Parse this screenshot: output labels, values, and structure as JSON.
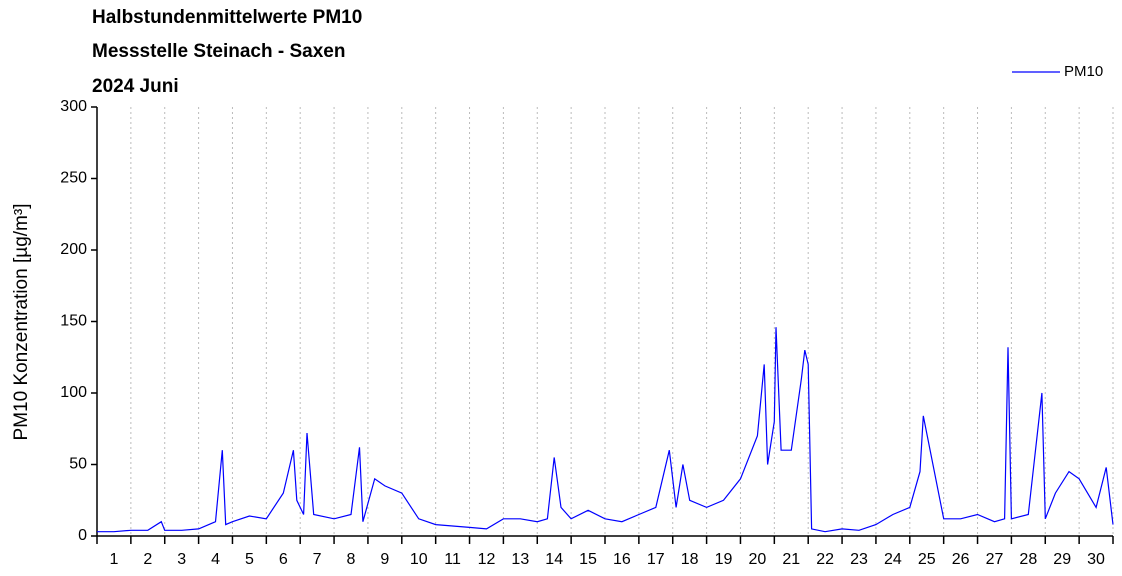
{
  "chart_data": {
    "type": "line",
    "title": [
      "Halbstundenmittelwerte PM10",
      "Messstelle Steinach - Saxen",
      "2024 Juni"
    ],
    "ylabel": "PM10 Konzentration [µg/m³]",
    "x": [
      0,
      0.5,
      1,
      1.5,
      1.9,
      2,
      2.5,
      3,
      3.5,
      3.7,
      3.8,
      4,
      4.5,
      5,
      5.5,
      5.8,
      5.9,
      6.1,
      6.2,
      6.4,
      7,
      7.5,
      7.75,
      7.85,
      8.2,
      8.5,
      9,
      9.5,
      10,
      10.5,
      11,
      11.5,
      12,
      12.5,
      13,
      13.3,
      13.5,
      13.7,
      14,
      14.5,
      15,
      15.5,
      16,
      16.5,
      16.9,
      17.1,
      17.3,
      17.5,
      18,
      18.5,
      19,
      19.5,
      19.7,
      19.8,
      20,
      20.05,
      20.2,
      20.5,
      20.8,
      20.9,
      21.0,
      21.1,
      21.5,
      22,
      22.5,
      23,
      23.5,
      24,
      24.3,
      24.4,
      25,
      25.5,
      26,
      26.5,
      26.8,
      26.9,
      27,
      27.5,
      27.9,
      28,
      28.3,
      28.7,
      29,
      29.5,
      29.8,
      30
    ],
    "series": [
      {
        "name": "PM10",
        "color": "#0000ff",
        "values": [
          3,
          3,
          4,
          4,
          10,
          4,
          4,
          5,
          10,
          60,
          8,
          10,
          14,
          12,
          30,
          60,
          25,
          15,
          72,
          15,
          12,
          15,
          62,
          10,
          40,
          35,
          30,
          12,
          8,
          7,
          6,
          5,
          12,
          12,
          10,
          12,
          55,
          20,
          12,
          18,
          12,
          10,
          15,
          20,
          60,
          20,
          50,
          25,
          20,
          25,
          40,
          70,
          120,
          50,
          80,
          146,
          60,
          60,
          110,
          130,
          120,
          5,
          3,
          5,
          4,
          8,
          15,
          20,
          45,
          84,
          12,
          12,
          15,
          10,
          12,
          132,
          12,
          15,
          100,
          12,
          30,
          45,
          40,
          20,
          48,
          8
        ]
      }
    ],
    "xlim": [
      0,
      30
    ],
    "xticks": [
      {
        "value": 0.5,
        "label": "1"
      },
      {
        "value": 1.5,
        "label": "2"
      },
      {
        "value": 2.5,
        "label": "3"
      },
      {
        "value": 3.5,
        "label": "4"
      },
      {
        "value": 4.5,
        "label": "5"
      },
      {
        "value": 5.5,
        "label": "6"
      },
      {
        "value": 6.5,
        "label": "7"
      },
      {
        "value": 7.5,
        "label": "8"
      },
      {
        "value": 8.5,
        "label": "9"
      },
      {
        "value": 9.5,
        "label": "10"
      },
      {
        "value": 10.5,
        "label": "11"
      },
      {
        "value": 11.5,
        "label": "12"
      },
      {
        "value": 12.5,
        "label": "13"
      },
      {
        "value": 13.5,
        "label": "14"
      },
      {
        "value": 14.5,
        "label": "15"
      },
      {
        "value": 15.5,
        "label": "16"
      },
      {
        "value": 16.5,
        "label": "17"
      },
      {
        "value": 17.5,
        "label": "18"
      },
      {
        "value": 18.5,
        "label": "19"
      },
      {
        "value": 19.5,
        "label": "20"
      },
      {
        "value": 20.5,
        "label": "21"
      },
      {
        "value": 21.5,
        "label": "22"
      },
      {
        "value": 22.5,
        "label": "23"
      },
      {
        "value": 23.5,
        "label": "24"
      },
      {
        "value": 24.5,
        "label": "25"
      },
      {
        "value": 25.5,
        "label": "26"
      },
      {
        "value": 26.5,
        "label": "27"
      },
      {
        "value": 27.5,
        "label": "28"
      },
      {
        "value": 28.5,
        "label": "29"
      },
      {
        "value": 29.5,
        "label": "30"
      }
    ],
    "xminorticks": [
      0,
      1,
      2,
      3,
      4,
      5,
      6,
      7,
      8,
      9,
      10,
      11,
      12,
      13,
      14,
      15,
      16,
      17,
      18,
      19,
      20,
      21,
      22,
      23,
      24,
      25,
      26,
      27,
      28,
      29,
      30
    ],
    "ylim": [
      0,
      300
    ],
    "yticks": [
      0,
      50,
      100,
      150,
      200,
      250,
      300
    ],
    "xgrid": true,
    "legend": "top-right"
  }
}
